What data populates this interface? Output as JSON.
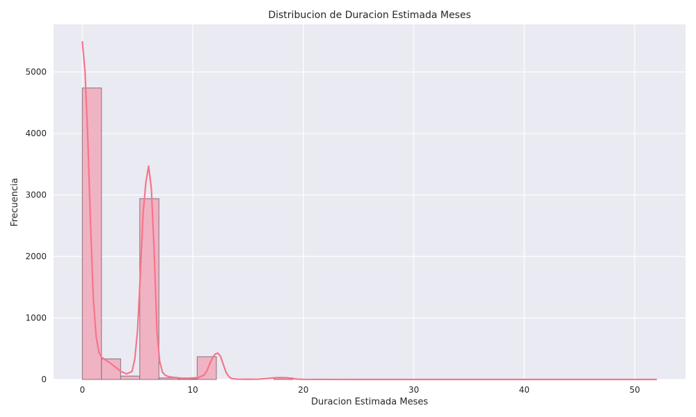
{
  "chart_data": {
    "type": "bar",
    "title": "Distribucion de Duracion Estimada Meses",
    "xlabel": "Duracion Estimada Meses",
    "ylabel": "Frecuencia",
    "xlim": [
      -2.6,
      54.6
    ],
    "ylim": [
      0,
      5775
    ],
    "xticks": [
      0,
      10,
      20,
      30,
      40,
      50
    ],
    "yticks": [
      0,
      1000,
      2000,
      3000,
      4000,
      5000
    ],
    "grid": true,
    "bin_edges": [
      0,
      1.733,
      3.467,
      5.2,
      6.933,
      8.667,
      10.4,
      12.133,
      13.867,
      15.6,
      17.333,
      19.067,
      20.8,
      22.533,
      24.267,
      26,
      27.733,
      29.467,
      31.2,
      32.933,
      34.667,
      36.4,
      38.133,
      39.867,
      41.6,
      43.333,
      45.067,
      46.8,
      48.533,
      50.267,
      52
    ],
    "values": [
      4740,
      335,
      55,
      2940,
      25,
      10,
      370,
      0,
      0,
      0,
      25,
      0,
      0,
      0,
      0,
      0,
      0,
      0,
      0,
      0,
      0,
      0,
      0,
      0,
      0,
      0,
      0,
      0,
      0,
      0
    ],
    "kde": {
      "x": [
        0,
        0.25,
        0.5,
        0.75,
        1,
        1.25,
        1.5,
        1.75,
        2,
        2.5,
        3,
        3.5,
        4,
        4.5,
        4.75,
        5,
        5.25,
        5.5,
        5.75,
        6,
        6.25,
        6.5,
        6.75,
        7,
        7.25,
        7.5,
        7.75,
        8,
        8.5,
        9,
        9.5,
        10,
        10.5,
        11,
        11.25,
        11.5,
        11.75,
        12,
        12.25,
        12.5,
        12.75,
        13,
        13.25,
        13.5,
        14,
        15,
        16,
        17,
        17.5,
        18,
        18.5,
        19,
        19.5,
        20,
        25,
        30,
        35,
        40,
        45,
        50,
        52
      ],
      "y": [
        5500,
        5000,
        3900,
        2500,
        1300,
        700,
        440,
        360,
        330,
        270,
        200,
        130,
        90,
        130,
        330,
        800,
        1700,
        2700,
        3200,
        3470,
        3100,
        2100,
        800,
        300,
        120,
        70,
        50,
        40,
        30,
        20,
        20,
        25,
        30,
        70,
        130,
        240,
        340,
        410,
        430,
        380,
        250,
        120,
        50,
        15,
        5,
        3,
        5,
        20,
        28,
        30,
        28,
        15,
        5,
        2,
        0,
        0,
        0,
        0,
        0,
        0,
        0
      ]
    },
    "colors": {
      "bar_fill": "#f0b0c0",
      "bar_edge": "#8c6f78",
      "kde_line": "#f6748a",
      "plot_bg": "#eaeaf2",
      "grid": "#ffffff"
    }
  }
}
